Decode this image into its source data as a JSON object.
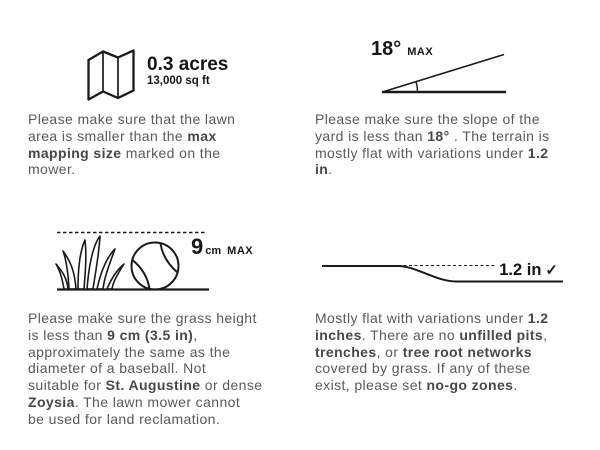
{
  "colors": {
    "paragraph_text": "#59595b",
    "emphasis_text": "#48484a",
    "icon_ink": "#161616",
    "background": "#ffffff"
  },
  "sections": {
    "mapping_size": {
      "icon": "folded-map",
      "value": "0.3 acres",
      "subvalue": "13,000 sq ft",
      "lines": [
        [
          {
            "t": "Please make sure that the lawn"
          }
        ],
        [
          {
            "t": "area is smaller than the "
          },
          {
            "t": "max",
            "b": true
          }
        ],
        [
          {
            "t": "mapping size",
            "b": true
          },
          {
            "t": " marked on the"
          }
        ],
        [
          {
            "t": "mower."
          }
        ]
      ]
    },
    "slope": {
      "icon": "slope-angle",
      "value": "18°",
      "max_label": "MAX",
      "lines": [
        [
          {
            "t": "Please make sure the slope of the"
          }
        ],
        [
          {
            "t": "yard is less than "
          },
          {
            "t": "18°",
            "b": true
          },
          {
            "t": " . The terrain is"
          }
        ],
        [
          {
            "t": "mostly flat with variations under "
          },
          {
            "t": "1.2",
            "b": true
          }
        ],
        [
          {
            "t": "in",
            "b": true
          },
          {
            "t": "."
          }
        ]
      ]
    },
    "grass_height": {
      "icon": "grass-and-baseball",
      "value": "9",
      "unit": "cm",
      "max_label": "MAX",
      "lines": [
        [
          {
            "t": "Please make sure the grass height"
          }
        ],
        [
          {
            "t": "is less than "
          },
          {
            "t": "9 cm (3.5 in)",
            "b": true
          },
          {
            "t": ","
          }
        ],
        [
          {
            "t": "approximately the same as the"
          }
        ],
        [
          {
            "t": "diameter of a baseball. Not"
          }
        ],
        [
          {
            "t": "suitable for "
          },
          {
            "t": "St. Augustine",
            "b": true
          },
          {
            "t": " or dense"
          }
        ],
        [
          {
            "t": "Zoysia",
            "b": true
          },
          {
            "t": ". The lawn mower cannot"
          }
        ],
        [
          {
            "t": "be used for land reclamation."
          }
        ]
      ]
    },
    "flatness": {
      "icon": "terrain-step",
      "value": "1.2 in",
      "check": "✓",
      "lines": [
        [
          {
            "t": "Mostly flat with variations under "
          },
          {
            "t": "1.2",
            "b": true
          }
        ],
        [
          {
            "t": "inches",
            "b": true
          },
          {
            "t": ". There are no "
          },
          {
            "t": "unfilled pits",
            "b": true
          },
          {
            "t": ","
          }
        ],
        [
          {
            "t": "trenches",
            "b": true
          },
          {
            "t": ", or "
          },
          {
            "t": "tree root networks",
            "b": true
          }
        ],
        [
          {
            "t": "covered by grass. If any of these"
          }
        ],
        [
          {
            "t": "exist, please set "
          },
          {
            "t": "no-go zones",
            "b": true
          },
          {
            "t": "."
          }
        ]
      ]
    }
  }
}
